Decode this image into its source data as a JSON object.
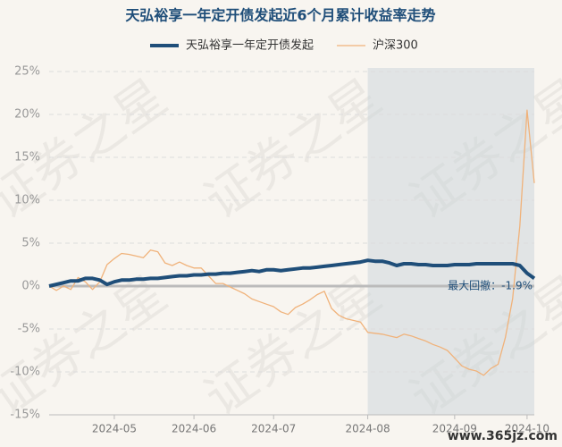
{
  "chart_data": {
    "type": "line",
    "title": "天弘裕享一年定开债发起近6个月累计收益率走势",
    "watermark": "证券之星",
    "site": "www.365jz.com",
    "annotation": "最大回撤：-1.9%",
    "categories": [
      null,
      null,
      null,
      null,
      null,
      null,
      null,
      null,
      null,
      "2024-05",
      null,
      null,
      null,
      null,
      null,
      null,
      null,
      null,
      null,
      null,
      "2024-06",
      null,
      null,
      null,
      null,
      null,
      null,
      null,
      null,
      null,
      null,
      "2024-07",
      null,
      null,
      null,
      null,
      null,
      null,
      null,
      null,
      null,
      null,
      null,
      null,
      "2024-08",
      null,
      null,
      null,
      null,
      null,
      null,
      null,
      null,
      null,
      null,
      null,
      "2024-09",
      null,
      null,
      null,
      null,
      null,
      null,
      null,
      null,
      null,
      "2024-10",
      null
    ],
    "series": [
      {
        "name": "天弘裕享一年定开债发起",
        "color": "#1f4e79",
        "width": 4,
        "values": [
          0,
          0.2,
          0.4,
          0.6,
          0.6,
          0.9,
          0.9,
          0.7,
          0.2,
          0.5,
          0.7,
          0.7,
          0.8,
          0.8,
          0.9,
          0.9,
          1.0,
          1.1,
          1.2,
          1.2,
          1.3,
          1.3,
          1.4,
          1.4,
          1.5,
          1.5,
          1.6,
          1.7,
          1.8,
          1.7,
          1.9,
          1.9,
          1.8,
          1.9,
          2.0,
          2.1,
          2.1,
          2.2,
          2.3,
          2.4,
          2.5,
          2.6,
          2.7,
          2.8,
          3.0,
          2.9,
          2.9,
          2.7,
          2.4,
          2.6,
          2.6,
          2.5,
          2.5,
          2.4,
          2.4,
          2.4,
          2.5,
          2.5,
          2.5,
          2.6,
          2.6,
          2.6,
          2.6,
          2.6,
          2.6,
          2.4,
          1.5,
          0.9
        ]
      },
      {
        "name": "沪深300",
        "color": "#f0b27a",
        "width": 1.3,
        "values": [
          0,
          -0.5,
          0,
          -0.4,
          1,
          0.5,
          -0.4,
          0.5,
          2.5,
          3.2,
          3.8,
          3.7,
          3.5,
          3.3,
          4.2,
          4.0,
          2.7,
          2.4,
          2.8,
          2.4,
          2.1,
          2.1,
          1.2,
          0.3,
          0.3,
          -0.1,
          -0.5,
          -0.9,
          -1.5,
          -1.8,
          -2.1,
          -2.4,
          -3.0,
          -3.3,
          -2.5,
          -2.1,
          -1.6,
          -1.0,
          -0.6,
          -2.6,
          -3.4,
          -3.8,
          -4.0,
          -4.2,
          -5.4,
          -5.5,
          -5.6,
          -5.8,
          -6.0,
          -5.6,
          -5.8,
          -6.1,
          -6.4,
          -6.8,
          -7.1,
          -7.5,
          -8.4,
          -9.3,
          -9.7,
          -9.9,
          -10.4,
          -9.6,
          -9.1,
          -6.0,
          -1.5,
          7.0,
          20.5,
          12
        ]
      }
    ],
    "ylim": [
      -15,
      25
    ],
    "yticks": [
      {
        "value": -15,
        "label": "-15%"
      },
      {
        "value": -10,
        "label": "-10%"
      },
      {
        "value": -5,
        "label": "-5%"
      },
      {
        "value": 0,
        "label": "0%"
      },
      {
        "value": 5,
        "label": "5%"
      },
      {
        "value": 10,
        "label": "10%"
      },
      {
        "value": 15,
        "label": "15%"
      },
      {
        "value": 20,
        "label": "20%"
      },
      {
        "value": 25,
        "label": "25%"
      }
    ],
    "grid": true
  }
}
